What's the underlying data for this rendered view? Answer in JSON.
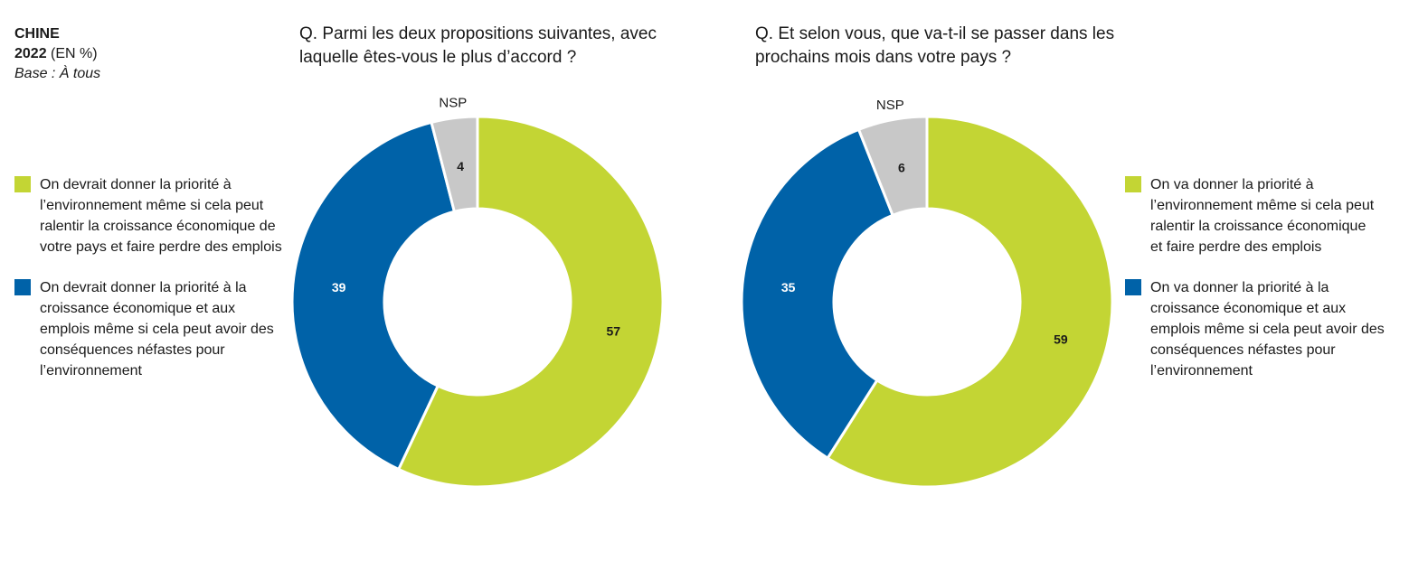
{
  "header": {
    "country": "CHINE",
    "year": "2022",
    "unit": "(EN %)",
    "base": "Base : À tous"
  },
  "colors": {
    "green": "#c3d534",
    "blue": "#0062a8",
    "grey": "#c8c8c8"
  },
  "chart_data": [
    {
      "type": "pie",
      "title": "Q. Parmi les deux propositions suivantes, avec laquelle êtes-vous le plus d’accord ?",
      "categories": [
        "On devrait donner la priorité à l’environnement même si cela peut ralentir la croissance économique de votre pays et faire perdre des emplois",
        "On devrait donner la priorité à la croissance économique et aux emplois même si cela peut avoir des conséquences néfastes pour l’environnement",
        "NSP"
      ],
      "values": [
        57,
        39,
        4
      ],
      "value_labels": [
        "57",
        "39",
        "4"
      ],
      "colors": [
        "#c3d534",
        "#0062a8",
        "#c8c8c8"
      ],
      "donut": true
    },
    {
      "type": "pie",
      "title": "Q. Et selon vous, que va-t-il se passer dans les prochains mois dans votre pays ?",
      "categories": [
        "On va donner la priorité à l’environnement même si cela peut ralentir la croissance économique et faire perdre des emplois",
        "On va donner la priorité à la croissance économique et aux emplois même si cela peut avoir des conséquences néfastes pour l’environnement",
        "NSP"
      ],
      "values": [
        59,
        35,
        6
      ],
      "value_labels": [
        "59",
        "35",
        "6"
      ],
      "colors": [
        "#c3d534",
        "#0062a8",
        "#c8c8c8"
      ],
      "donut": true
    }
  ]
}
